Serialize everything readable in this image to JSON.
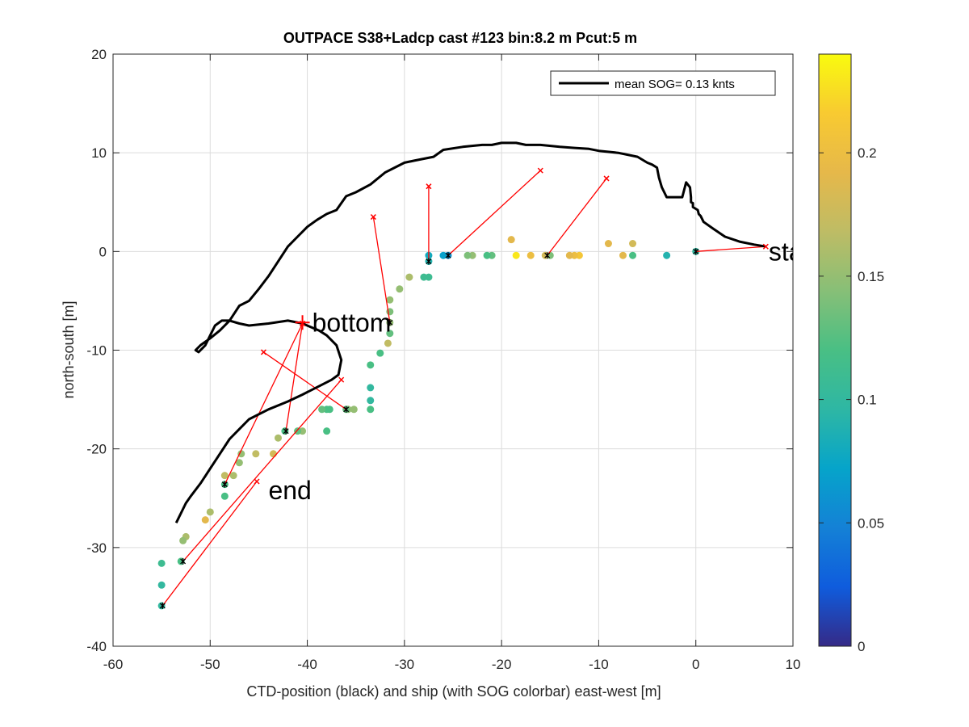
{
  "chart_data": {
    "type": "scatter",
    "title": "OUTPACE S38+Ladcp cast #123 bin:8.2 m  Pcut:5 m",
    "xlabel": "CTD-position (black) and ship (with SOG colorbar) east-west [m]",
    "ylabel": "north-south [m]",
    "xlim": [
      -60,
      10
    ],
    "ylim": [
      -40,
      20
    ],
    "xticks": [
      -60,
      -50,
      -40,
      -30,
      -20,
      -10,
      0,
      10
    ],
    "yticks": [
      -40,
      -30,
      -20,
      -10,
      0,
      10,
      20
    ],
    "grid": true,
    "legend": {
      "placement": "top-right",
      "entries": [
        {
          "label": "mean SOG=  0.13 knts",
          "color": "#000000"
        }
      ]
    },
    "colorbar": {
      "min": 0,
      "max": 0.24,
      "ticks": [
        0,
        0.05,
        0.1,
        0.15,
        0.2
      ],
      "tick_labels": [
        "0",
        "0.05",
        "0.1",
        "0.15",
        "0.2"
      ],
      "colormap": "parula"
    },
    "annotations": [
      {
        "text": "start",
        "x": 7.5,
        "y": 0
      },
      {
        "text": "bottom",
        "x": -39.5,
        "y": -7.2
      },
      {
        "text": "end",
        "x": -44,
        "y": -24.2
      }
    ],
    "ctd_track": [
      [
        7.2,
        0.5
      ],
      [
        6.0,
        0.7
      ],
      [
        4.5,
        1.0
      ],
      [
        3.0,
        1.5
      ],
      [
        1.8,
        2.3
      ],
      [
        0.8,
        3.0
      ],
      [
        0.5,
        3.6
      ],
      [
        0.3,
        3.8
      ],
      [
        0.2,
        4.2
      ],
      [
        -0.3,
        4.5
      ],
      [
        -0.3,
        4.9
      ],
      [
        -0.5,
        5.0
      ],
      [
        -0.5,
        5.5
      ],
      [
        -0.6,
        6.5
      ],
      [
        -1.0,
        7.0
      ],
      [
        -1.4,
        5.5
      ],
      [
        -2.0,
        5.5
      ],
      [
        -3.0,
        5.5
      ],
      [
        -3.5,
        6.5
      ],
      [
        -3.8,
        7.5
      ],
      [
        -4.0,
        8.5
      ],
      [
        -4.5,
        8.8
      ],
      [
        -5.0,
        9.0
      ],
      [
        -6.0,
        9.6
      ],
      [
        -7.0,
        9.8
      ],
      [
        -8.0,
        10.0
      ],
      [
        -10.0,
        10.2
      ],
      [
        -11.0,
        10.4
      ],
      [
        -12.5,
        10.5
      ],
      [
        -14.0,
        10.6
      ],
      [
        -16.0,
        10.8
      ],
      [
        -17.5,
        10.8
      ],
      [
        -18.5,
        11.0
      ],
      [
        -20.0,
        11.0
      ],
      [
        -21.0,
        10.8
      ],
      [
        -22.0,
        10.8
      ],
      [
        -24.0,
        10.6
      ],
      [
        -26.0,
        10.3
      ],
      [
        -27.0,
        9.6
      ],
      [
        -28.0,
        9.4
      ],
      [
        -29.0,
        9.2
      ],
      [
        -30.0,
        9.0
      ],
      [
        -31.0,
        8.5
      ],
      [
        -32.0,
        8.0
      ],
      [
        -33.5,
        6.8
      ],
      [
        -35.0,
        6.0
      ],
      [
        -36.0,
        5.6
      ],
      [
        -37.0,
        4.2
      ],
      [
        -38.0,
        3.8
      ],
      [
        -39.0,
        3.2
      ],
      [
        -40.0,
        2.5
      ],
      [
        -41.0,
        1.5
      ],
      [
        -42.0,
        0.5
      ],
      [
        -43.0,
        -1.0
      ],
      [
        -44.0,
        -2.5
      ],
      [
        -45.0,
        -3.8
      ],
      [
        -46.0,
        -5.0
      ],
      [
        -47.0,
        -5.5
      ],
      [
        -48.0,
        -7.0
      ],
      [
        -49.0,
        -8.0
      ],
      [
        -50.0,
        -8.8
      ],
      [
        -51.0,
        -9.5
      ],
      [
        -51.5,
        -10.0
      ],
      [
        -51.2,
        -10.2
      ],
      [
        -50.5,
        -9.5
      ],
      [
        -50.0,
        -8.5
      ],
      [
        -49.5,
        -7.5
      ],
      [
        -48.8,
        -7.0
      ],
      [
        -48.0,
        -7.0
      ],
      [
        -47.0,
        -7.3
      ],
      [
        -46.0,
        -7.5
      ],
      [
        -44.0,
        -7.3
      ],
      [
        -42.0,
        -7.0
      ],
      [
        -40.5,
        -7.3
      ],
      [
        -38.8,
        -8.0
      ],
      [
        -38.0,
        -8.5
      ],
      [
        -37.0,
        -9.5
      ],
      [
        -36.5,
        -11.0
      ],
      [
        -36.8,
        -12.5
      ],
      [
        -37.5,
        -13.0
      ],
      [
        -38.5,
        -13.5
      ],
      [
        -40.5,
        -14.5
      ],
      [
        -42.0,
        -15.2
      ],
      [
        -44.0,
        -16.0
      ],
      [
        -46.0,
        -17.0
      ],
      [
        -47.0,
        -18.0
      ],
      [
        -48.0,
        -19.0
      ],
      [
        -49.0,
        -20.5
      ],
      [
        -50.0,
        -22.0
      ],
      [
        -51.0,
        -23.5
      ],
      [
        -52.0,
        -24.8
      ],
      [
        -52.5,
        -25.5
      ],
      [
        -53.0,
        -26.5
      ],
      [
        -53.5,
        -27.5
      ]
    ],
    "ship_points": [
      {
        "x": 0,
        "y": 0,
        "v": 0.1
      },
      {
        "x": -3,
        "y": -0.4,
        "v": 0.09
      },
      {
        "x": -6.5,
        "y": -0.4,
        "v": 0.12
      },
      {
        "x": -6.5,
        "y": 0.8,
        "v": 0.18
      },
      {
        "x": -7.5,
        "y": -0.4,
        "v": 0.19
      },
      {
        "x": -9,
        "y": 0.8,
        "v": 0.19
      },
      {
        "x": -12,
        "y": -0.4,
        "v": 0.21
      },
      {
        "x": -12.5,
        "y": -0.4,
        "v": 0.2
      },
      {
        "x": -13,
        "y": -0.4,
        "v": 0.19
      },
      {
        "x": -15,
        "y": -0.4,
        "v": 0.14
      },
      {
        "x": -15.5,
        "y": -0.4,
        "v": 0.18
      },
      {
        "x": -17,
        "y": -0.4,
        "v": 0.2
      },
      {
        "x": -18.5,
        "y": -0.4,
        "v": 0.23
      },
      {
        "x": -19,
        "y": 1.2,
        "v": 0.19
      },
      {
        "x": -21,
        "y": -0.4,
        "v": 0.13
      },
      {
        "x": -21.5,
        "y": -0.4,
        "v": 0.12
      },
      {
        "x": -23,
        "y": -0.4,
        "v": 0.15
      },
      {
        "x": -23.5,
        "y": -0.4,
        "v": 0.14
      },
      {
        "x": -25.5,
        "y": -0.4,
        "v": 0.06
      },
      {
        "x": -26,
        "y": -0.4,
        "v": 0.07
      },
      {
        "x": -27.5,
        "y": -0.4,
        "v": 0.08
      },
      {
        "x": -27.5,
        "y": -1,
        "v": 0.09
      },
      {
        "x": -27.5,
        "y": -2.6,
        "v": 0.11
      },
      {
        "x": -28,
        "y": -2.6,
        "v": 0.11
      },
      {
        "x": -29.5,
        "y": -2.6,
        "v": 0.16
      },
      {
        "x": -30.5,
        "y": -3.8,
        "v": 0.15
      },
      {
        "x": -31.5,
        "y": -4.9,
        "v": 0.15
      },
      {
        "x": -31.5,
        "y": -6.1,
        "v": 0.14
      },
      {
        "x": -31.5,
        "y": -7.2,
        "v": 0.15
      },
      {
        "x": -31.5,
        "y": -8.3,
        "v": 0.13
      },
      {
        "x": -31.7,
        "y": -9.3,
        "v": 0.17
      },
      {
        "x": -32.5,
        "y": -10.3,
        "v": 0.12
      },
      {
        "x": -33.5,
        "y": -11.5,
        "v": 0.12
      },
      {
        "x": -33.5,
        "y": -13.8,
        "v": 0.1
      },
      {
        "x": -33.5,
        "y": -15.1,
        "v": 0.1
      },
      {
        "x": -33.5,
        "y": -16,
        "v": 0.12
      },
      {
        "x": -35.2,
        "y": -16,
        "v": 0.15
      },
      {
        "x": -35.8,
        "y": -16,
        "v": 0.15
      },
      {
        "x": -36,
        "y": -16,
        "v": 0.13
      },
      {
        "x": -37.7,
        "y": -16,
        "v": 0.12
      },
      {
        "x": -38,
        "y": -16,
        "v": 0.12
      },
      {
        "x": -38.5,
        "y": -16,
        "v": 0.13
      },
      {
        "x": -38,
        "y": -18.2,
        "v": 0.12
      },
      {
        "x": -40.5,
        "y": -18.2,
        "v": 0.15
      },
      {
        "x": -41,
        "y": -18.2,
        "v": 0.13
      },
      {
        "x": -42.3,
        "y": -18.2,
        "v": 0.12
      },
      {
        "x": -43,
        "y": -18.9,
        "v": 0.16
      },
      {
        "x": -43.5,
        "y": -20.5,
        "v": 0.18
      },
      {
        "x": -45.3,
        "y": -20.5,
        "v": 0.17
      },
      {
        "x": -46.8,
        "y": -20.5,
        "v": 0.15
      },
      {
        "x": -47,
        "y": -21.4,
        "v": 0.15
      },
      {
        "x": -47.6,
        "y": -22.7,
        "v": 0.16
      },
      {
        "x": -48.5,
        "y": -22.7,
        "v": 0.17
      },
      {
        "x": -48.5,
        "y": -23.6,
        "v": 0.12
      },
      {
        "x": -48.5,
        "y": -24.8,
        "v": 0.12
      },
      {
        "x": -50,
        "y": -26.4,
        "v": 0.16
      },
      {
        "x": -50.5,
        "y": -27.2,
        "v": 0.19
      },
      {
        "x": -52.5,
        "y": -28.9,
        "v": 0.16
      },
      {
        "x": -52.8,
        "y": -29.3,
        "v": 0.15
      },
      {
        "x": -53,
        "y": -31.4,
        "v": 0.12
      },
      {
        "x": -55,
        "y": -31.6,
        "v": 0.11
      },
      {
        "x": -55,
        "y": -33.8,
        "v": 0.1
      },
      {
        "x": -55,
        "y": -35.9,
        "v": 0.1
      }
    ],
    "marked_ship_points": [
      [
        0,
        0
      ],
      [
        -15.3,
        -0.4
      ],
      [
        -25.5,
        -0.4
      ],
      [
        -27.5,
        -1
      ],
      [
        -31.5,
        -7.2
      ],
      [
        -36,
        -16
      ],
      [
        -42.2,
        -18.2
      ],
      [
        -48.5,
        -23.6
      ],
      [
        -52.8,
        -31.4
      ],
      [
        -54.9,
        -35.9
      ]
    ],
    "connections": [
      {
        "ctd": [
          7.2,
          0.5
        ],
        "ship": [
          0,
          0
        ]
      },
      {
        "ctd": [
          -9.2,
          7.4
        ],
        "ship": [
          -15.3,
          -0.4
        ]
      },
      {
        "ctd": [
          -16,
          8.2
        ],
        "ship": [
          -25.5,
          -0.4
        ]
      },
      {
        "ctd": [
          -27.5,
          6.6
        ],
        "ship": [
          -27.5,
          -1
        ]
      },
      {
        "ctd": [
          -33.2,
          3.5
        ],
        "ship": [
          -31.5,
          -7.2
        ]
      },
      {
        "ctd": [
          -44.5,
          -10.2
        ],
        "ship": [
          -36,
          -16
        ]
      },
      {
        "ctd": [
          -40.5,
          -7.3
        ],
        "ship": [
          -42.2,
          -18.2
        ]
      },
      {
        "ctd": [
          -40.5,
          -7.3
        ],
        "ship": [
          -48.5,
          -23.6
        ]
      },
      {
        "ctd": [
          -36.5,
          -13
        ],
        "ship": [
          -52.8,
          -31.4
        ]
      },
      {
        "ctd": [
          -45.2,
          -23.3
        ],
        "ship": [
          -54.9,
          -35.9
        ]
      }
    ]
  }
}
